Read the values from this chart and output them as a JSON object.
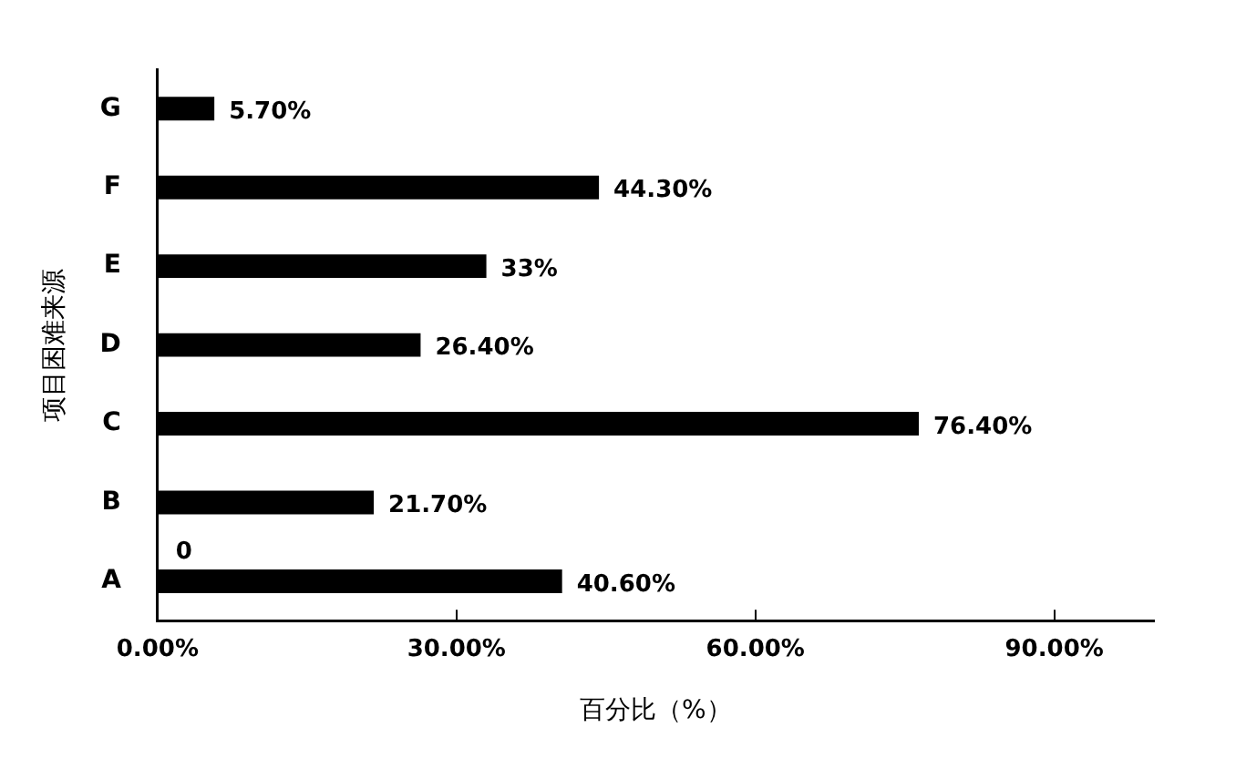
{
  "chart_data": {
    "type": "bar",
    "orientation": "horizontal",
    "xlabel": "百分比（%）",
    "ylabel": "项目困难来源",
    "categories": [
      "G",
      "F",
      "E",
      "D",
      "C",
      "B",
      "A"
    ],
    "values": [
      5.7,
      44.3,
      33,
      26.4,
      76.4,
      21.7,
      40.6
    ],
    "value_labels": [
      "5.70%",
      "44.30%",
      "33%",
      "26.40%",
      "76.40%",
      "21.70%",
      "40.60%"
    ],
    "color": "#000000",
    "xlim": [
      0,
      100
    ],
    "xticks": [
      {
        "value": 0,
        "label": "0.00%"
      },
      {
        "value": 30,
        "label": "30.00%"
      },
      {
        "value": 60,
        "label": "60.00%"
      },
      {
        "value": 90,
        "label": "90.00%"
      }
    ],
    "annotations": [
      {
        "text": "0",
        "x": 0,
        "y": "A"
      }
    ],
    "grid": false,
    "legend": false
  }
}
